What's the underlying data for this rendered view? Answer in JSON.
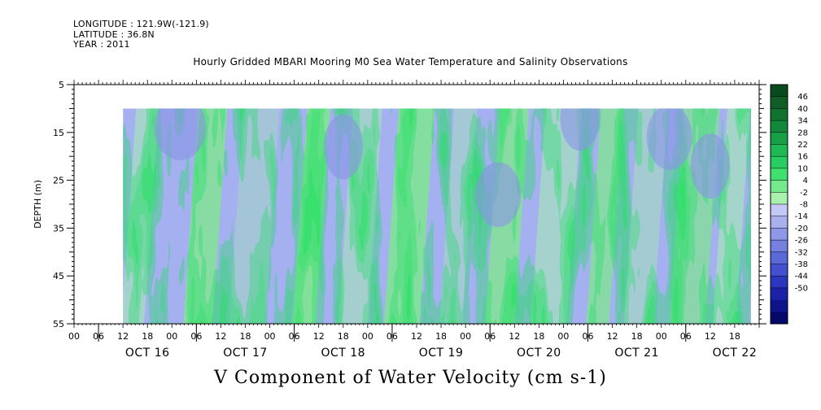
{
  "header": {
    "longitude": "LONGITUDE : 121.9W(-121.9)",
    "latitude": "LATITUDE : 36.8N",
    "year": "YEAR : 2011"
  },
  "chart_data": {
    "type": "heatmap",
    "title": "Hourly Gridded MBARI Mooring M0 Sea Water Temperature and Salinity Observations",
    "xlabel": "V Component of Water Velocity (cm s-1)",
    "ylabel": "DEPTH (m)",
    "y_ticks": [
      5,
      15,
      25,
      35,
      45,
      55
    ],
    "ylim": [
      5,
      55
    ],
    "y_inverted": true,
    "data_depth_range": [
      10,
      55
    ],
    "x_hour_ticks": [
      "00",
      "06",
      "12",
      "18",
      "00",
      "06",
      "12",
      "18",
      "00",
      "06",
      "12",
      "18",
      "00",
      "06",
      "12",
      "18",
      "00",
      "06",
      "12",
      "18",
      "00",
      "06",
      "12",
      "18",
      "00",
      "06",
      "12",
      "18"
    ],
    "x_day_labels": [
      "OCT 16",
      "OCT 17",
      "OCT 18",
      "OCT 19",
      "OCT 20",
      "OCT 21",
      "OCT 22"
    ],
    "x_range_hours": [
      -6,
      162
    ],
    "data_time_range_hours": [
      6,
      160
    ],
    "colorbar": {
      "labels": [
        "46",
        "40",
        "34",
        "28",
        "22",
        "16",
        "10",
        "4",
        "-2",
        "-8",
        "-14",
        "-20",
        "-26",
        "-32",
        "-38",
        "-44",
        "-50"
      ],
      "colors": [
        "#0a4a1f",
        "#0f5e26",
        "#127230",
        "#14883a",
        "#17a045",
        "#1eb854",
        "#29cc62",
        "#3fe070",
        "#74ea8c",
        "#a8f2ad",
        "#c3c9f4",
        "#a9b0ee",
        "#8f98e8",
        "#7580e0",
        "#5b68d8",
        "#4450ce",
        "#2c36bf",
        "#1a22a8",
        "#0e148a",
        "#05086a"
      ]
    },
    "grid": false,
    "legend": "right"
  }
}
